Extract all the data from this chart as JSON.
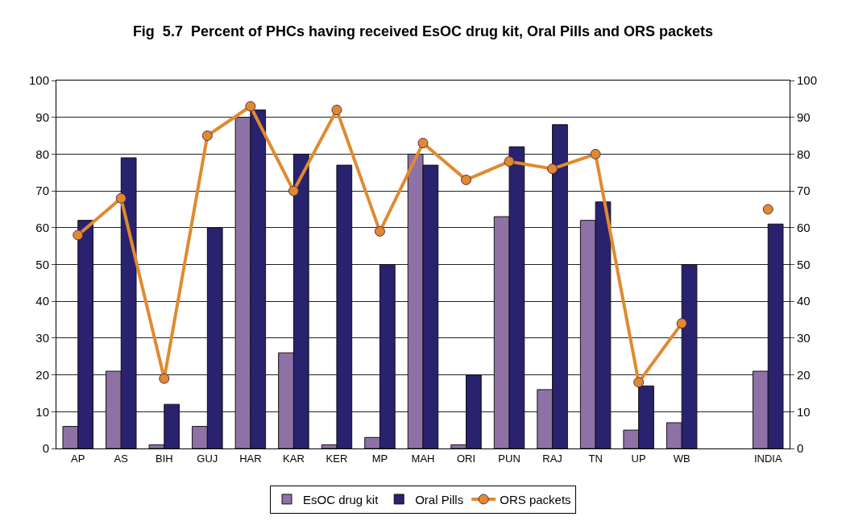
{
  "chart_data": {
    "type": "bar",
    "title": "Fig  5.7  Percent of PHCs having received EsOC drug kit, Oral Pills and ORS packets",
    "categories": [
      "AP",
      "AS",
      "BIH",
      "GUJ",
      "HAR",
      "KAR",
      "KER",
      "MP",
      "MAH",
      "ORI",
      "PUN",
      "RAJ",
      "TN",
      "UP",
      "WB",
      null,
      "INDIA"
    ],
    "series": [
      {
        "name": "EsOC drug kit",
        "color": "#8e72a6",
        "values": [
          6,
          21,
          1,
          6,
          90,
          26,
          1,
          3,
          80,
          1,
          63,
          16,
          62,
          5,
          7,
          null,
          21
        ]
      },
      {
        "name": "Oral Pills",
        "color": "#29226e",
        "values": [
          62,
          79,
          12,
          60,
          92,
          80,
          77,
          50,
          77,
          20,
          82,
          88,
          67,
          17,
          50,
          null,
          61
        ]
      },
      {
        "name": "ORS packets",
        "type": "line",
        "axis": "y2",
        "color": "#e08a30",
        "values": [
          58,
          68,
          19,
          85,
          93,
          70,
          92,
          59,
          83,
          73,
          78,
          76,
          80,
          18,
          34,
          null,
          65
        ]
      }
    ],
    "ylim": [
      0,
      100
    ],
    "yticks": [
      0,
      10,
      20,
      30,
      40,
      50,
      60,
      70,
      80,
      90,
      100
    ],
    "y2lim": [
      0,
      100
    ],
    "y2ticks": [
      0,
      10,
      20,
      30,
      40,
      50,
      60,
      70,
      80,
      90,
      100
    ],
    "grid": "y",
    "legend": "bottom",
    "marker": "circle"
  }
}
